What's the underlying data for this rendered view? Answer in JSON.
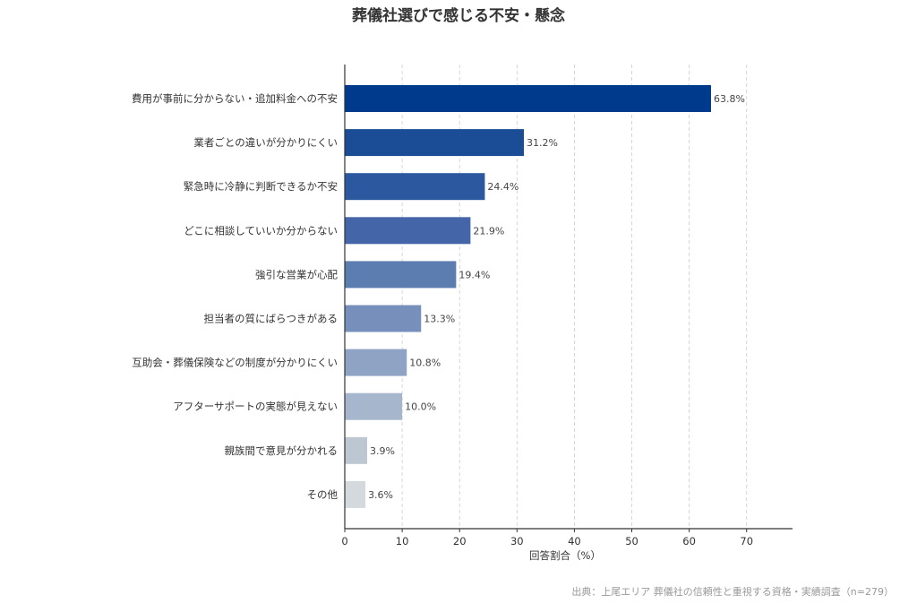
{
  "chart_data": {
    "type": "bar",
    "orientation": "horizontal",
    "title": "葬儀社選びで感じる不安・懸念",
    "xlabel": "回答割合（%）",
    "ylabel": "",
    "xlim": [
      0,
      78
    ],
    "xticks": [
      0,
      10,
      20,
      30,
      40,
      50,
      60,
      70
    ],
    "grid": "vertical dashed",
    "categories": [
      "費用が事前に分からない・追加料金への不安",
      "業者ごとの違いが分かりにくい",
      "緊急時に冷静に判断できるか不安",
      "どこに相談していいか分からない",
      "強引な営業が心配",
      "担当者の質にばらつきがある",
      "互助会・葬儀保険などの制度が分かりにくい",
      "アフターサポートの実態が見えない",
      "親族間で意見が分かれる",
      "その他"
    ],
    "values": [
      63.8,
      31.2,
      24.4,
      21.9,
      19.4,
      13.3,
      10.8,
      10.0,
      3.9,
      3.6
    ],
    "value_labels": [
      "63.8%",
      "31.2%",
      "24.4%",
      "21.9%",
      "19.4%",
      "13.3%",
      "10.8%",
      "10.0%",
      "3.9%",
      "3.6%"
    ],
    "colors": [
      "#003a8c",
      "#1a4d96",
      "#2c58a0",
      "#4466a8",
      "#5c7db0",
      "#7790bb",
      "#8fa4c4",
      "#a6b6cc",
      "#bdc7d1",
      "#d3d9dd"
    ],
    "source": "出典：上尾エリア 葬儀社の信頼性と重視する資格・実績調査（n=279）"
  }
}
